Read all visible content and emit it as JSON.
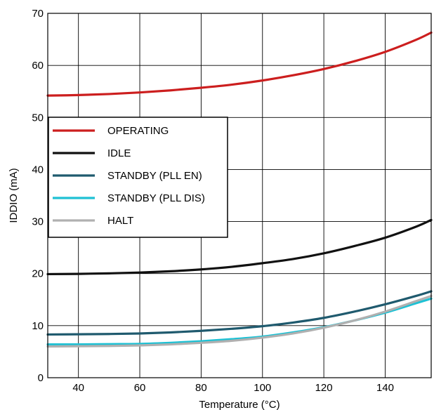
{
  "chart_data": {
    "type": "line",
    "title": "",
    "xlabel": "Temperature (°C)",
    "ylabel": "IDDIO (mA)",
    "xlim": [
      30,
      155
    ],
    "ylim": [
      0,
      70
    ],
    "x_ticks": [
      40,
      60,
      80,
      100,
      120,
      140
    ],
    "y_ticks": [
      0,
      10,
      20,
      30,
      40,
      50,
      60,
      70
    ],
    "grid": true,
    "legend_position": "left",
    "x": [
      30,
      40,
      50,
      60,
      70,
      80,
      90,
      100,
      110,
      120,
      130,
      140,
      150,
      155
    ],
    "series": [
      {
        "name": "OPERATING",
        "color": "#cc1e1e",
        "values": [
          54.2,
          54.3,
          54.5,
          54.8,
          55.2,
          55.7,
          56.3,
          57.1,
          58.1,
          59.3,
          60.8,
          62.6,
          64.9,
          66.3
        ]
      },
      {
        "name": "IDLE",
        "color": "#111111",
        "values": [
          19.9,
          19.95,
          20.05,
          20.2,
          20.45,
          20.8,
          21.3,
          22.0,
          22.8,
          23.9,
          25.3,
          26.9,
          29.0,
          30.3
        ]
      },
      {
        "name": "STANDBY (PLL EN)",
        "color": "#1f5a6e",
        "values": [
          8.3,
          8.35,
          8.4,
          8.5,
          8.7,
          9.0,
          9.4,
          9.9,
          10.6,
          11.5,
          12.7,
          14.1,
          15.7,
          16.6
        ]
      },
      {
        "name": "STANDBY (PLL DIS)",
        "color": "#1ec1d4",
        "values": [
          6.4,
          6.4,
          6.45,
          6.5,
          6.7,
          7.0,
          7.4,
          7.9,
          8.7,
          9.7,
          11.0,
          12.5,
          14.3,
          15.2
        ]
      },
      {
        "name": "HALT",
        "color": "#b0b0b0",
        "values": [
          6.0,
          6.05,
          6.1,
          6.2,
          6.4,
          6.7,
          7.1,
          7.7,
          8.5,
          9.6,
          11.0,
          12.7,
          14.7,
          15.7
        ]
      }
    ]
  }
}
